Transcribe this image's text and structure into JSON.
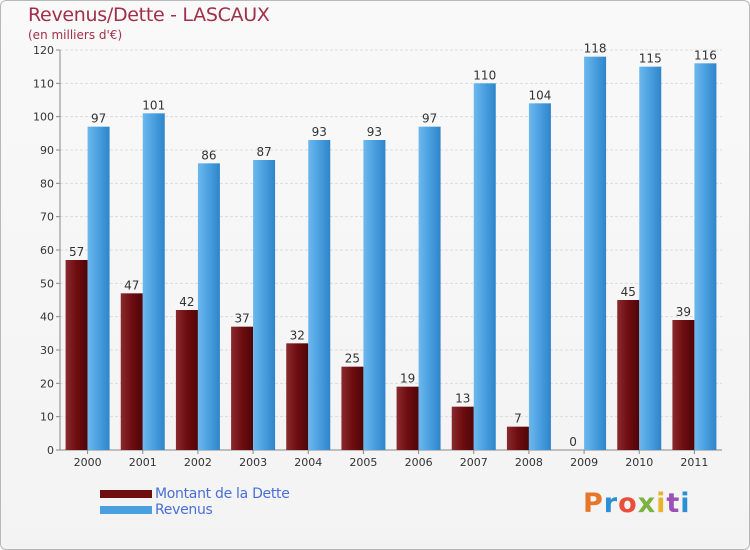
{
  "chart_data": {
    "type": "bar",
    "title": "Revenus/Dette - LASCAUX",
    "subtitle": "(en milliers d'€)",
    "categories": [
      "2000",
      "2001",
      "2002",
      "2003",
      "2004",
      "2005",
      "2006",
      "2007",
      "2008",
      "2009",
      "2010",
      "2011"
    ],
    "series": [
      {
        "name": "Montant de la Dette",
        "color": "#6e0d10",
        "values": [
          57,
          47,
          42,
          37,
          32,
          25,
          19,
          13,
          7,
          0,
          45,
          39
        ]
      },
      {
        "name": "Revenus",
        "color": "#4a9fdf",
        "values": [
          97,
          101,
          86,
          87,
          93,
          93,
          97,
          110,
          104,
          118,
          115,
          116
        ]
      }
    ],
    "ylim": [
      0,
      120
    ],
    "yticks": [
      0,
      10,
      20,
      30,
      40,
      50,
      60,
      70,
      80,
      90,
      100,
      110,
      120
    ],
    "grid": "horizontal",
    "legend_position": "bottom-left"
  },
  "logo": {
    "text": "Proxiti",
    "colors": [
      "#e8762a",
      "#2a8fd4",
      "#e94f3a",
      "#7bb241",
      "#e8b52a",
      "#9b4fb7",
      "#2a8fd4"
    ]
  }
}
